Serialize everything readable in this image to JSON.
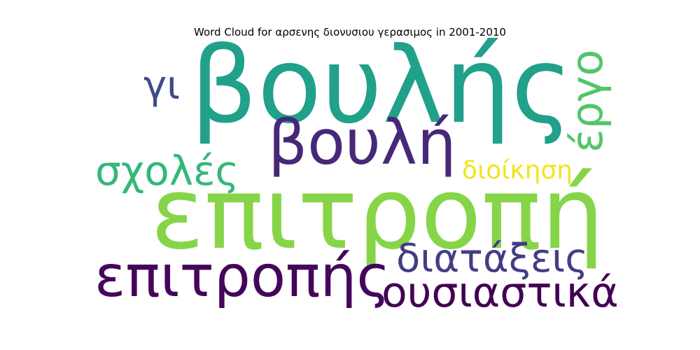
{
  "chart_data": {
    "type": "wordcloud",
    "title": "Word Cloud for αρσενης διονυσιου γερασιμος in 2001-2010",
    "words": [
      {
        "text": "βουλής",
        "weight": 1.0,
        "color": "#21a08a",
        "orientation": "horizontal"
      },
      {
        "text": "επιτροπή",
        "weight": 0.98,
        "color": "#86d549",
        "orientation": "horizontal"
      },
      {
        "text": "βουλή",
        "weight": 0.62,
        "color": "#472878",
        "orientation": "horizontal"
      },
      {
        "text": "επιτροπής",
        "weight": 0.58,
        "color": "#44065a",
        "orientation": "horizontal"
      },
      {
        "text": "ουσιαστικά",
        "weight": 0.45,
        "color": "#440154",
        "orientation": "horizontal"
      },
      {
        "text": "σχολές",
        "weight": 0.42,
        "color": "#35b779",
        "orientation": "horizontal"
      },
      {
        "text": "διατάξεις",
        "weight": 0.4,
        "color": "#433d84",
        "orientation": "horizontal"
      },
      {
        "text": "έργο",
        "weight": 0.4,
        "color": "#52c569",
        "orientation": "vertical"
      },
      {
        "text": "γι",
        "weight": 0.36,
        "color": "#3e4a89",
        "orientation": "horizontal"
      },
      {
        "text": "διοίκηση",
        "weight": 0.25,
        "color": "#f1e51d",
        "orientation": "horizontal"
      }
    ]
  }
}
